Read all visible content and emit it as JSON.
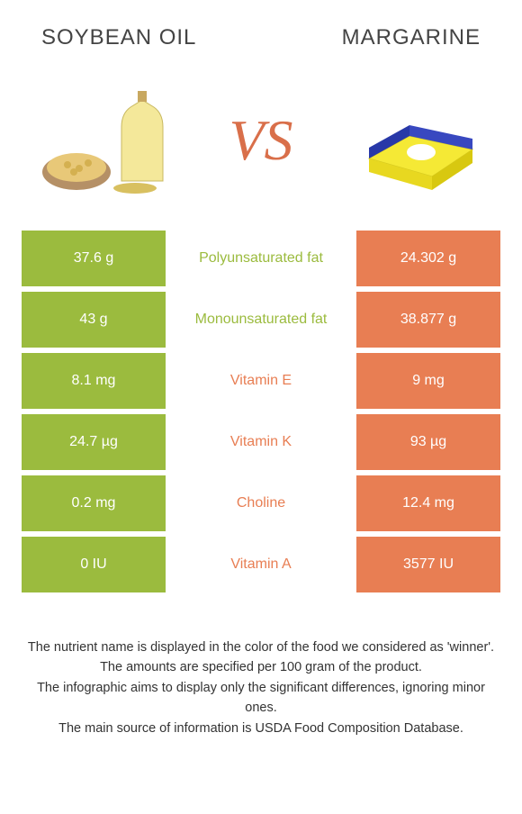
{
  "colors": {
    "left_bg": "#9bbb3e",
    "right_bg": "#e87e53",
    "mid_text_left": "#9bbb3e",
    "mid_text_right": "#e87e53",
    "header_text": "#444444",
    "vs_text": "#d96f4a",
    "footnote_text": "#333333",
    "page_bg": "#ffffff"
  },
  "header": {
    "left_title": "SOYBEAN OIL",
    "right_title": "MARGARINE",
    "vs_label": "VS"
  },
  "rows": [
    {
      "left": "37.6 g",
      "label": "Polyunsaturated fat",
      "right": "24.302 g",
      "winner": "left"
    },
    {
      "left": "43 g",
      "label": "Monounsaturated fat",
      "right": "38.877 g",
      "winner": "left"
    },
    {
      "left": "8.1 mg",
      "label": "Vitamin E",
      "right": "9 mg",
      "winner": "right"
    },
    {
      "left": "24.7 µg",
      "label": "Vitamin K",
      "right": "93 µg",
      "winner": "right"
    },
    {
      "left": "0.2 mg",
      "label": "Choline",
      "right": "12.4 mg",
      "winner": "right"
    },
    {
      "left": "0 IU",
      "label": "Vitamin A",
      "right": "3577 IU",
      "winner": "right"
    }
  ],
  "footnotes": [
    "The nutrient name is displayed in the color of the food we considered as 'winner'.",
    "The amounts are specified per 100 gram of the product.",
    "The infographic aims to display only the significant differences, ignoring minor ones.",
    "The main source of information is USDA Food Composition Database."
  ]
}
